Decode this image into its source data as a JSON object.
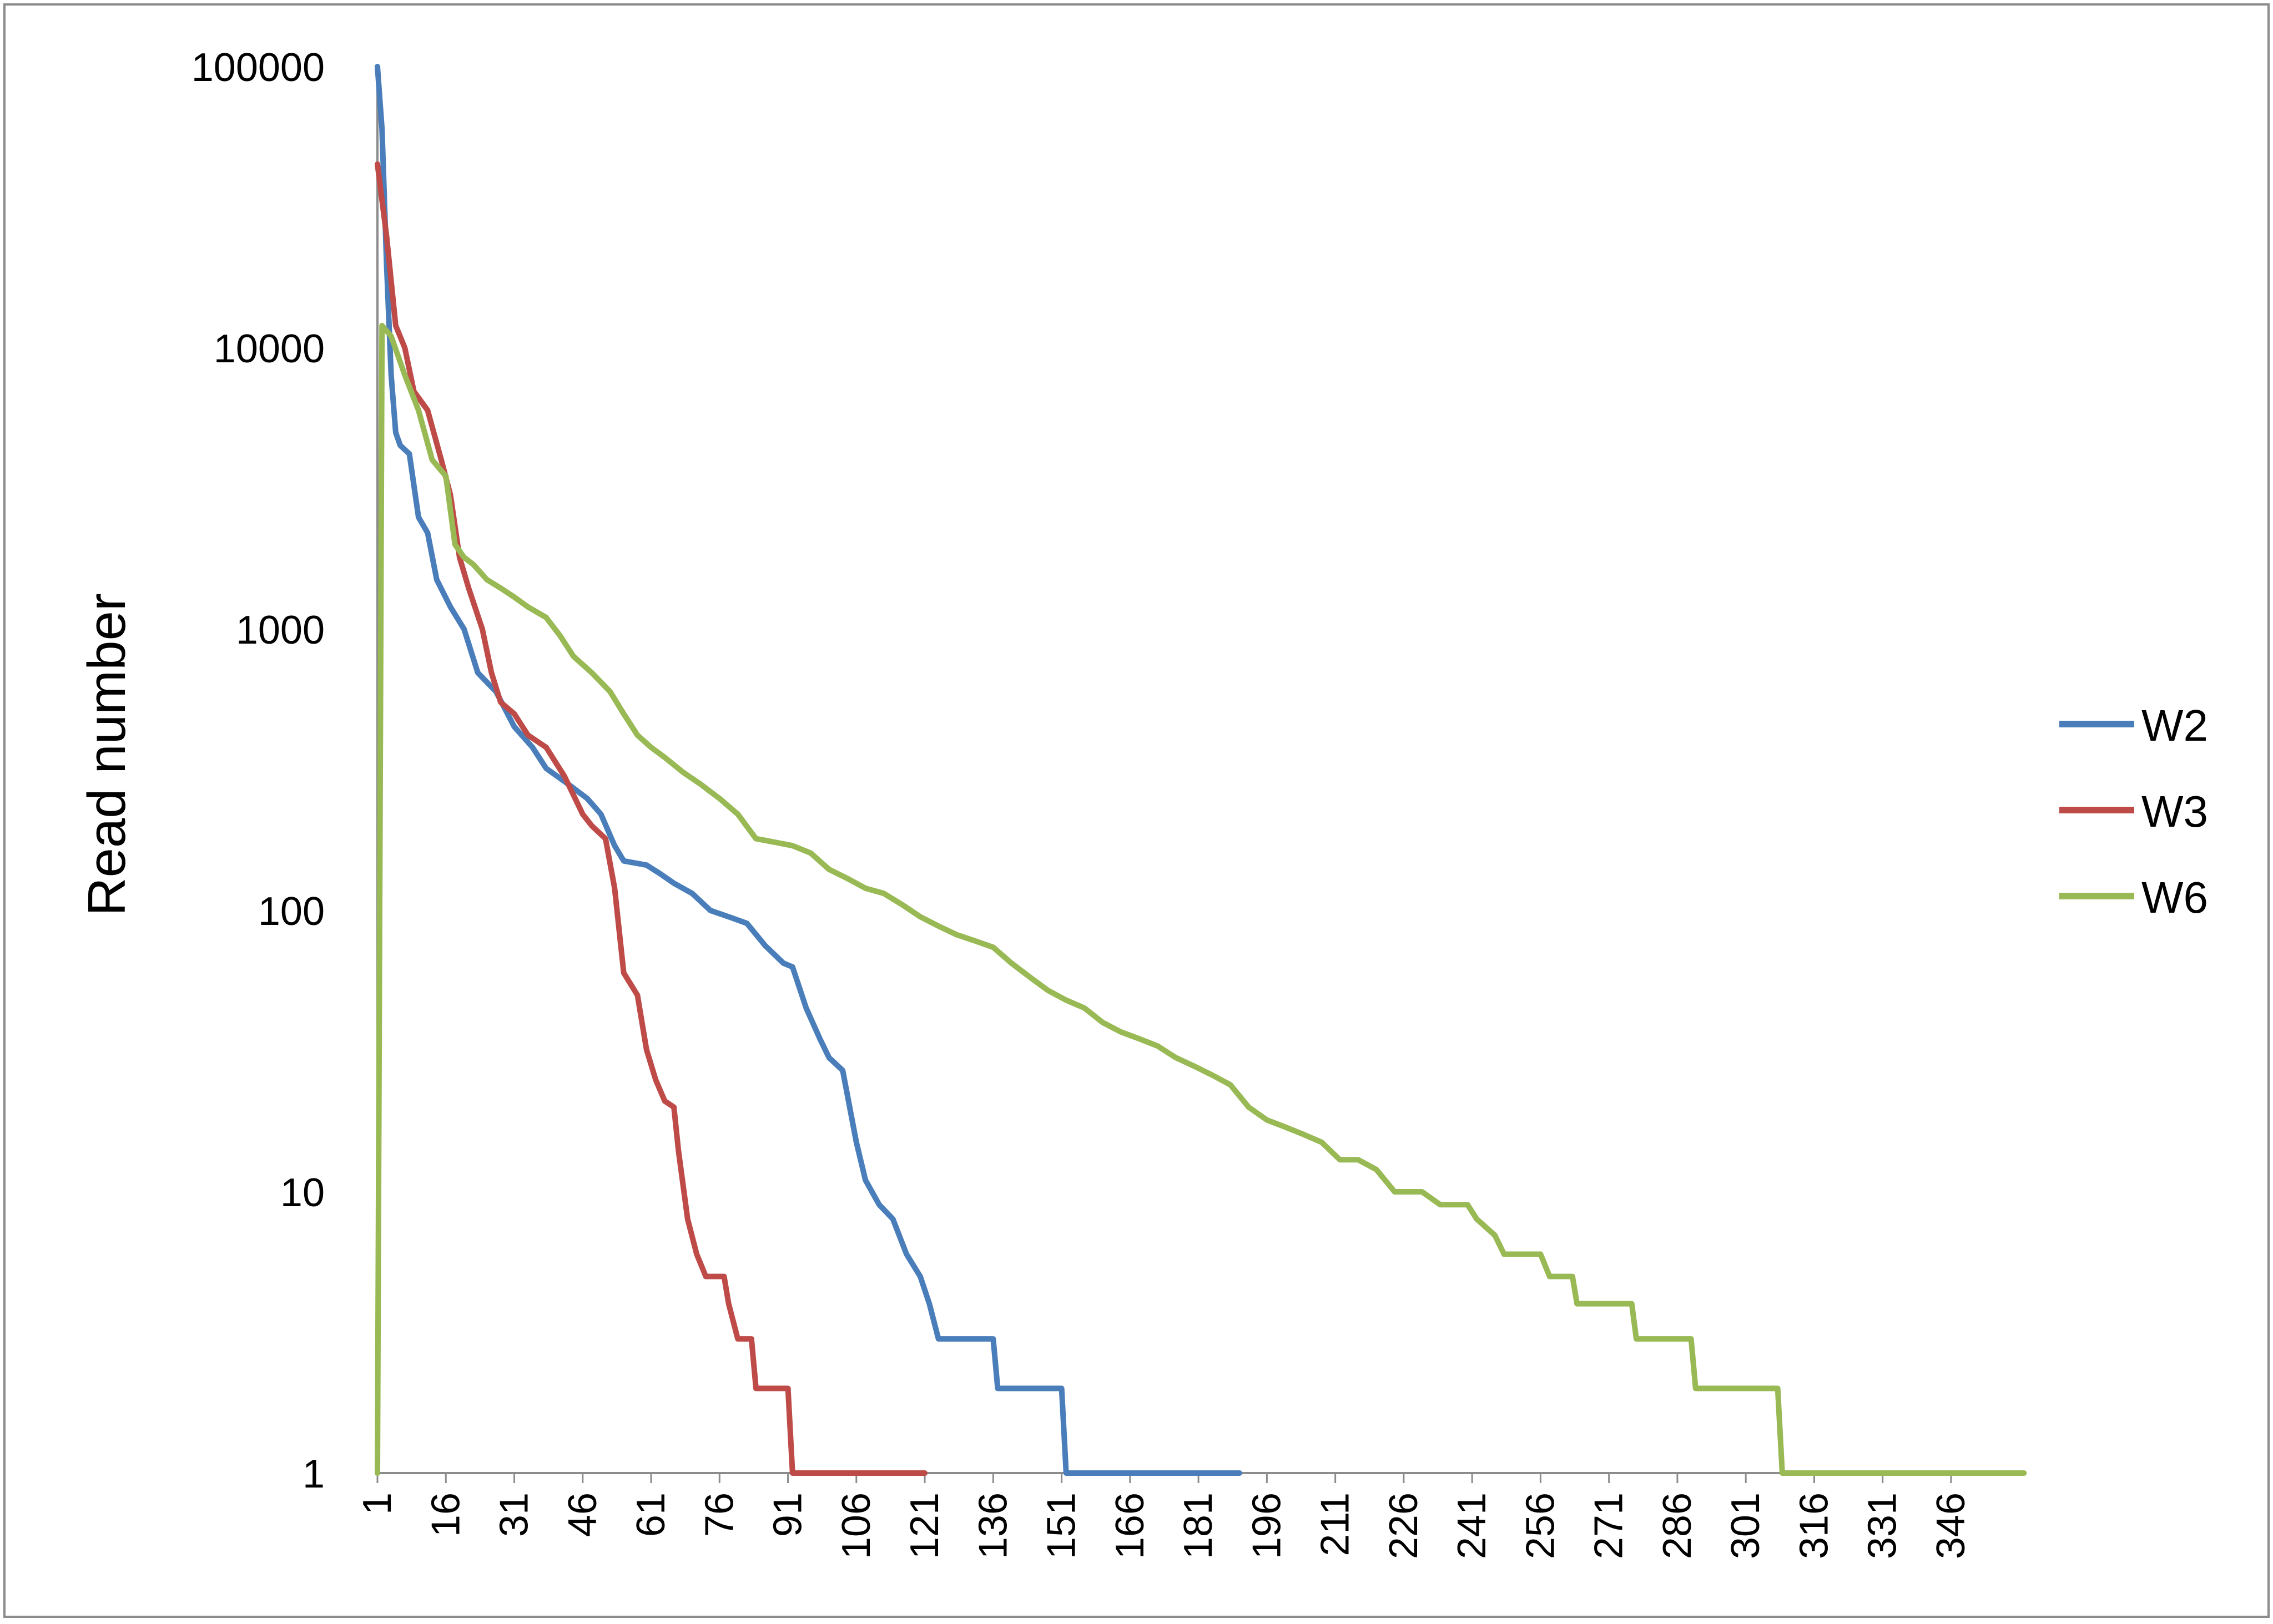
{
  "chart_data": {
    "type": "line",
    "title": "",
    "xlabel": "",
    "ylabel": "Read number",
    "y_scale": "log",
    "ylim": [
      1,
      100000
    ],
    "xlim": [
      1,
      360
    ],
    "y_ticks": [
      "1",
      "10",
      "100",
      "1000",
      "10000",
      "100000"
    ],
    "x_ticks": [
      "1",
      "16",
      "31",
      "46",
      "61",
      "76",
      "91",
      "106",
      "121",
      "136",
      "151",
      "166",
      "181",
      "196",
      "211",
      "226",
      "241",
      "256",
      "271",
      "286",
      "301",
      "316",
      "331",
      "346"
    ],
    "grid": false,
    "legend_position": "right",
    "series": [
      {
        "name": "W2",
        "color": "#4a7ebb",
        "points": [
          [
            1,
            100000
          ],
          [
            2,
            60000
          ],
          [
            3,
            20000
          ],
          [
            4,
            8000
          ],
          [
            5,
            5000
          ],
          [
            6,
            4500
          ],
          [
            8,
            4200
          ],
          [
            10,
            2500
          ],
          [
            12,
            2200
          ],
          [
            14,
            1500
          ],
          [
            17,
            1200
          ],
          [
            20,
            1000
          ],
          [
            23,
            700
          ],
          [
            27,
            600
          ],
          [
            31,
            450
          ],
          [
            35,
            380
          ],
          [
            38,
            320
          ],
          [
            43,
            280
          ],
          [
            47,
            250
          ],
          [
            50,
            220
          ],
          [
            53,
            170
          ],
          [
            55,
            150
          ],
          [
            60,
            145
          ],
          [
            63,
            135
          ],
          [
            66,
            125
          ],
          [
            70,
            115
          ],
          [
            74,
            100
          ],
          [
            78,
            95
          ],
          [
            82,
            90
          ],
          [
            86,
            75
          ],
          [
            90,
            65
          ],
          [
            92,
            63
          ],
          [
            95,
            45
          ],
          [
            98,
            35
          ],
          [
            100,
            30
          ],
          [
            103,
            27
          ],
          [
            106,
            15
          ],
          [
            108,
            11
          ],
          [
            111,
            9
          ],
          [
            114,
            8
          ],
          [
            117,
            6
          ],
          [
            120,
            5
          ],
          [
            122,
            4
          ],
          [
            124,
            3
          ],
          [
            130,
            3
          ],
          [
            136,
            3
          ],
          [
            137,
            2
          ],
          [
            145,
            2
          ],
          [
            151,
            2
          ],
          [
            152,
            1
          ],
          [
            190,
            1
          ]
        ]
      },
      {
        "name": "W3",
        "color": "#be4b48",
        "points": [
          [
            1,
            45000
          ],
          [
            3,
            25000
          ],
          [
            5,
            12000
          ],
          [
            7,
            10000
          ],
          [
            9,
            7000
          ],
          [
            12,
            6000
          ],
          [
            15,
            4000
          ],
          [
            17,
            3000
          ],
          [
            19,
            1800
          ],
          [
            21,
            1400
          ],
          [
            24,
            1000
          ],
          [
            26,
            700
          ],
          [
            28,
            550
          ],
          [
            31,
            500
          ],
          [
            34,
            420
          ],
          [
            38,
            380
          ],
          [
            42,
            300
          ],
          [
            46,
            220
          ],
          [
            48,
            200
          ],
          [
            51,
            180
          ],
          [
            53,
            120
          ],
          [
            55,
            60
          ],
          [
            58,
            50
          ],
          [
            60,
            32
          ],
          [
            62,
            25
          ],
          [
            64,
            21
          ],
          [
            66,
            20
          ],
          [
            67,
            14
          ],
          [
            69,
            8
          ],
          [
            71,
            6
          ],
          [
            73,
            5
          ],
          [
            77,
            5
          ],
          [
            78,
            4
          ],
          [
            80,
            3
          ],
          [
            83,
            3
          ],
          [
            84,
            2
          ],
          [
            91,
            2
          ],
          [
            92,
            1
          ],
          [
            121,
            1
          ]
        ]
      },
      {
        "name": "W6",
        "color": "#98b954",
        "points": [
          [
            1,
            1
          ],
          [
            2,
            12000
          ],
          [
            4,
            11000
          ],
          [
            7,
            8000
          ],
          [
            10,
            6000
          ],
          [
            13,
            4000
          ],
          [
            16,
            3500
          ],
          [
            18,
            2000
          ],
          [
            20,
            1800
          ],
          [
            22,
            1700
          ],
          [
            25,
            1500
          ],
          [
            28,
            1400
          ],
          [
            31,
            1300
          ],
          [
            34,
            1200
          ],
          [
            38,
            1100
          ],
          [
            41,
            950
          ],
          [
            44,
            800
          ],
          [
            48,
            700
          ],
          [
            52,
            600
          ],
          [
            55,
            500
          ],
          [
            58,
            420
          ],
          [
            61,
            380
          ],
          [
            64,
            350
          ],
          [
            68,
            310
          ],
          [
            72,
            280
          ],
          [
            76,
            250
          ],
          [
            80,
            220
          ],
          [
            84,
            180
          ],
          [
            88,
            175
          ],
          [
            92,
            170
          ],
          [
            96,
            160
          ],
          [
            100,
            140
          ],
          [
            104,
            130
          ],
          [
            108,
            120
          ],
          [
            112,
            115
          ],
          [
            116,
            105
          ],
          [
            120,
            95
          ],
          [
            124,
            88
          ],
          [
            128,
            82
          ],
          [
            132,
            78
          ],
          [
            136,
            74
          ],
          [
            140,
            65
          ],
          [
            144,
            58
          ],
          [
            148,
            52
          ],
          [
            152,
            48
          ],
          [
            156,
            45
          ],
          [
            160,
            40
          ],
          [
            164,
            37
          ],
          [
            168,
            35
          ],
          [
            172,
            33
          ],
          [
            176,
            30
          ],
          [
            180,
            28
          ],
          [
            184,
            26
          ],
          [
            188,
            24
          ],
          [
            192,
            20
          ],
          [
            196,
            18
          ],
          [
            200,
            17
          ],
          [
            204,
            16
          ],
          [
            208,
            15
          ],
          [
            212,
            13
          ],
          [
            216,
            13
          ],
          [
            220,
            12
          ],
          [
            224,
            10
          ],
          [
            230,
            10
          ],
          [
            234,
            9
          ],
          [
            240,
            9
          ],
          [
            242,
            8
          ],
          [
            246,
            7
          ],
          [
            248,
            6
          ],
          [
            256,
            6
          ],
          [
            258,
            5
          ],
          [
            263,
            5
          ],
          [
            264,
            4
          ],
          [
            276,
            4
          ],
          [
            277,
            3
          ],
          [
            289,
            3
          ],
          [
            290,
            2
          ],
          [
            308,
            2
          ],
          [
            309,
            1
          ],
          [
            362,
            1
          ]
        ]
      }
    ]
  }
}
